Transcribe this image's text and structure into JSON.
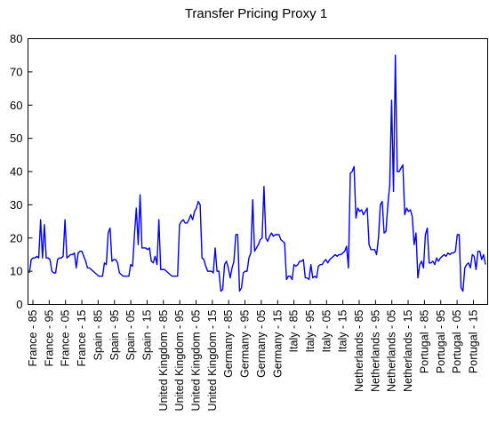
{
  "chart_data": {
    "type": "line",
    "title": "Transfer Pricing Proxy 1",
    "xlabel": "",
    "ylabel": "",
    "ylim": [
      0,
      80
    ],
    "yticks": [
      0,
      10,
      20,
      30,
      40,
      50,
      60,
      70,
      80
    ],
    "grid": false,
    "legend": "none",
    "line_color": "#0000ff",
    "x_tick_labels": [
      "France - 85",
      "France - 95",
      "France - 05",
      "France - 15",
      "Spain - 85",
      "Spain - 95",
      "Spain - 05",
      "Spain - 15",
      "United Kingdom - 85",
      "United Kingdom - 95",
      "United Kingdom - 05",
      "United Kingdom - 15",
      "Germany - 85",
      "Germany - 95",
      "Germany - 05",
      "Germany - 15",
      "Italy - 85",
      "Italy - 95",
      "Italy - 05",
      "Italy - 15",
      "Netherlands - 85",
      "Netherlands - 95",
      "Netherlands - 05",
      "Netherlands - 15",
      "Portugal - 85",
      "Portugal - 95",
      "Portugal - 05",
      "Portugal - 15"
    ],
    "values": [
      9.5,
      13.5,
      14,
      14,
      14.5,
      14,
      25.5,
      14,
      24,
      14,
      14,
      13.5,
      10,
      9.5,
      9.5,
      13.5,
      14,
      14,
      14.5,
      25.5,
      14,
      14.5,
      15,
      15,
      15.5,
      11,
      15.5,
      16,
      16,
      14.5,
      13,
      11,
      11,
      10.5,
      10,
      9.5,
      9,
      8.5,
      8.5,
      8.5,
      12.5,
      12,
      21.5,
      23,
      13,
      13.5,
      13.5,
      12.5,
      9.5,
      9,
      8.5,
      8.5,
      8.5,
      8.5,
      12,
      11.5,
      21,
      29,
      18,
      33,
      17,
      17,
      17,
      16.5,
      17,
      13,
      12.5,
      14.5,
      12,
      25.5,
      10.5,
      10.5,
      10.5,
      10,
      9.5,
      9,
      8.5,
      8.5,
      8.5,
      8.5,
      24,
      25,
      25.5,
      24.5,
      24.5,
      25.5,
      27,
      25.5,
      28,
      29,
      31,
      30,
      14,
      13.5,
      11.5,
      10,
      10,
      10,
      9.5,
      17,
      10,
      10,
      4,
      4.5,
      12,
      13,
      11,
      8,
      11,
      13,
      21,
      21,
      4,
      5,
      9.5,
      10,
      10,
      14,
      15.5,
      31.5,
      16,
      17,
      18,
      19.5,
      20,
      35.5,
      20,
      19,
      20.5,
      21.5,
      20.5,
      21,
      21,
      21,
      19.5,
      19,
      18.5,
      7.5,
      8.5,
      8.5,
      7.5,
      12,
      11.5,
      12,
      13,
      13,
      13.5,
      8,
      8,
      7.5,
      12,
      8,
      8.5,
      8,
      11.5,
      12,
      12,
      13,
      13.5,
      12.5,
      13.5,
      14,
      14.5,
      15,
      14.5,
      15,
      15,
      15.5,
      16,
      17.5,
      11,
      39.5,
      40,
      41.5,
      26,
      29,
      28,
      28.5,
      27,
      28,
      29,
      18,
      16.5,
      16.5,
      16.5,
      15,
      20,
      30,
      31,
      21.5,
      22,
      30,
      36,
      61.5,
      34,
      75,
      40,
      40,
      41,
      42,
      27,
      29,
      28,
      28.5,
      26.5,
      18,
      21.5,
      8,
      12,
      13,
      11,
      21,
      23,
      12.5,
      12.5,
      13,
      12,
      14,
      13,
      14,
      14.5,
      15,
      14.5,
      15.5,
      15,
      15.5,
      15.5,
      16,
      21,
      21,
      5,
      4,
      11,
      12,
      12.5,
      11,
      15,
      14.5,
      10.5,
      16,
      16,
      13.5,
      15,
      12
    ]
  }
}
